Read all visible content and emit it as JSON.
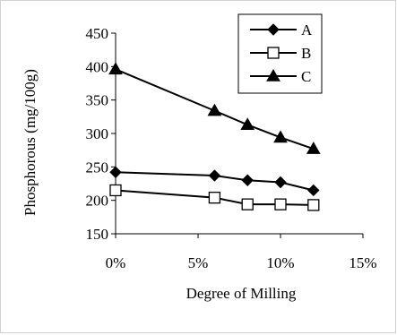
{
  "chart_data": {
    "type": "line",
    "xlabel": "Degree of Milling",
    "ylabel": "Phosphorous (mg/100g)",
    "x": [
      0,
      6,
      8,
      10,
      12
    ],
    "x_unit": "percent",
    "xlim": [
      0,
      15
    ],
    "ylim": [
      150,
      450
    ],
    "xticks": [
      "0%",
      "5%",
      "10%",
      "15%"
    ],
    "xtick_values": [
      0,
      5,
      10,
      15
    ],
    "yticks": [
      "150",
      "200",
      "250",
      "300",
      "350",
      "400",
      "450"
    ],
    "ytick_values": [
      150,
      200,
      250,
      300,
      350,
      400,
      450
    ],
    "grid": false,
    "legend_position": "top-right",
    "series": [
      {
        "name": "A",
        "marker": "diamond",
        "values": [
          242,
          237,
          230,
          227,
          215
        ]
      },
      {
        "name": "B",
        "marker": "square",
        "values": [
          215,
          204,
          194,
          194,
          193
        ]
      },
      {
        "name": "C",
        "marker": "triangle",
        "values": [
          396,
          334,
          313,
          294,
          277
        ]
      }
    ]
  }
}
